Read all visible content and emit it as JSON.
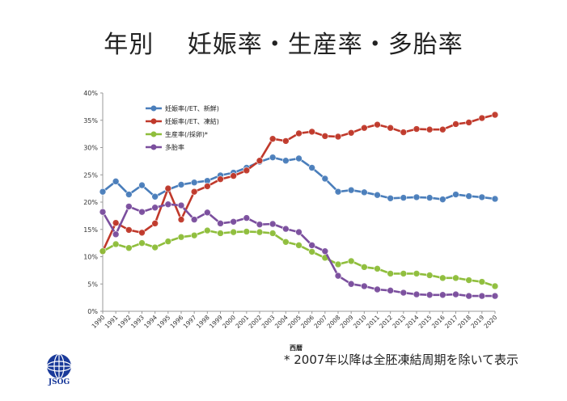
{
  "title": "年別　 妊娠率・生産率・多胎率",
  "footnote": "* 2007年以降は全胚凍結周期を除いて表示",
  "logo_text": "JSOG",
  "colors": {
    "blue": "#4a7ebb",
    "red": "#c0392b",
    "green": "#8fbe3c",
    "purple": "#7b4f9e"
  },
  "chart_data": {
    "type": "line",
    "xlabel": "西暦",
    "ylabel": "",
    "ylim": [
      0,
      40
    ],
    "yticks": [
      "0%",
      "5%",
      "10%",
      "15%",
      "20%",
      "25%",
      "30%",
      "35%",
      "40%"
    ],
    "grid": false,
    "legend": "top-left",
    "x": [
      "1990",
      "1991",
      "1992",
      "1993",
      "1994",
      "1995",
      "1996",
      "1997",
      "1998",
      "1999",
      "2000",
      "2001",
      "2002",
      "2003",
      "2004",
      "2005",
      "2006",
      "2007",
      "2008",
      "2009",
      "2010",
      "2011",
      "2012",
      "2013",
      "2014",
      "2015",
      "2016",
      "2017",
      "2018",
      "2019",
      "2020"
    ],
    "series": [
      {
        "name": "妊娠率(/ET、新鮮)",
        "color": "#4a7ebb",
        "values": [
          21.9,
          23.8,
          21.4,
          23.1,
          21.0,
          22.3,
          23.2,
          23.6,
          23.9,
          24.9,
          25.4,
          26.3,
          27.4,
          28.2,
          27.6,
          28.0,
          26.3,
          24.3,
          21.9,
          22.2,
          21.8,
          21.3,
          20.7,
          20.8,
          20.9,
          20.8,
          20.5,
          21.4,
          21.1,
          20.9,
          20.6
        ]
      },
      {
        "name": "妊娠率(/ET、凍結)",
        "color": "#c0392b",
        "values": [
          11.0,
          16.2,
          14.9,
          14.4,
          16.1,
          22.5,
          16.8,
          21.9,
          22.9,
          24.2,
          24.8,
          25.8,
          27.6,
          31.6,
          31.2,
          32.6,
          32.9,
          32.1,
          32.0,
          32.7,
          33.6,
          34.2,
          33.6,
          32.8,
          33.4,
          33.3,
          33.3,
          34.3,
          34.6,
          35.4,
          36.0
        ]
      },
      {
        "name": "生産率(/採卵)*",
        "color": "#8fbe3c",
        "values": [
          11.0,
          12.3,
          11.6,
          12.5,
          11.7,
          12.8,
          13.6,
          13.9,
          14.8,
          14.3,
          14.5,
          14.6,
          14.5,
          14.3,
          12.7,
          12.1,
          10.9,
          9.8,
          8.6,
          9.2,
          8.1,
          7.8,
          6.9,
          6.9,
          6.9,
          6.6,
          6.1,
          6.1,
          5.7,
          5.4,
          4.6
        ]
      },
      {
        "name": "多胎率",
        "color": "#7b4f9e",
        "values": [
          18.2,
          14.1,
          19.2,
          18.2,
          19.0,
          19.6,
          19.4,
          16.8,
          18.1,
          16.1,
          16.4,
          17.1,
          15.9,
          16.0,
          15.1,
          14.5,
          12.1,
          11.0,
          6.5,
          5.0,
          4.6,
          4.0,
          3.8,
          3.4,
          3.1,
          3.0,
          3.0,
          3.1,
          2.8,
          2.8,
          2.8
        ]
      }
    ]
  }
}
